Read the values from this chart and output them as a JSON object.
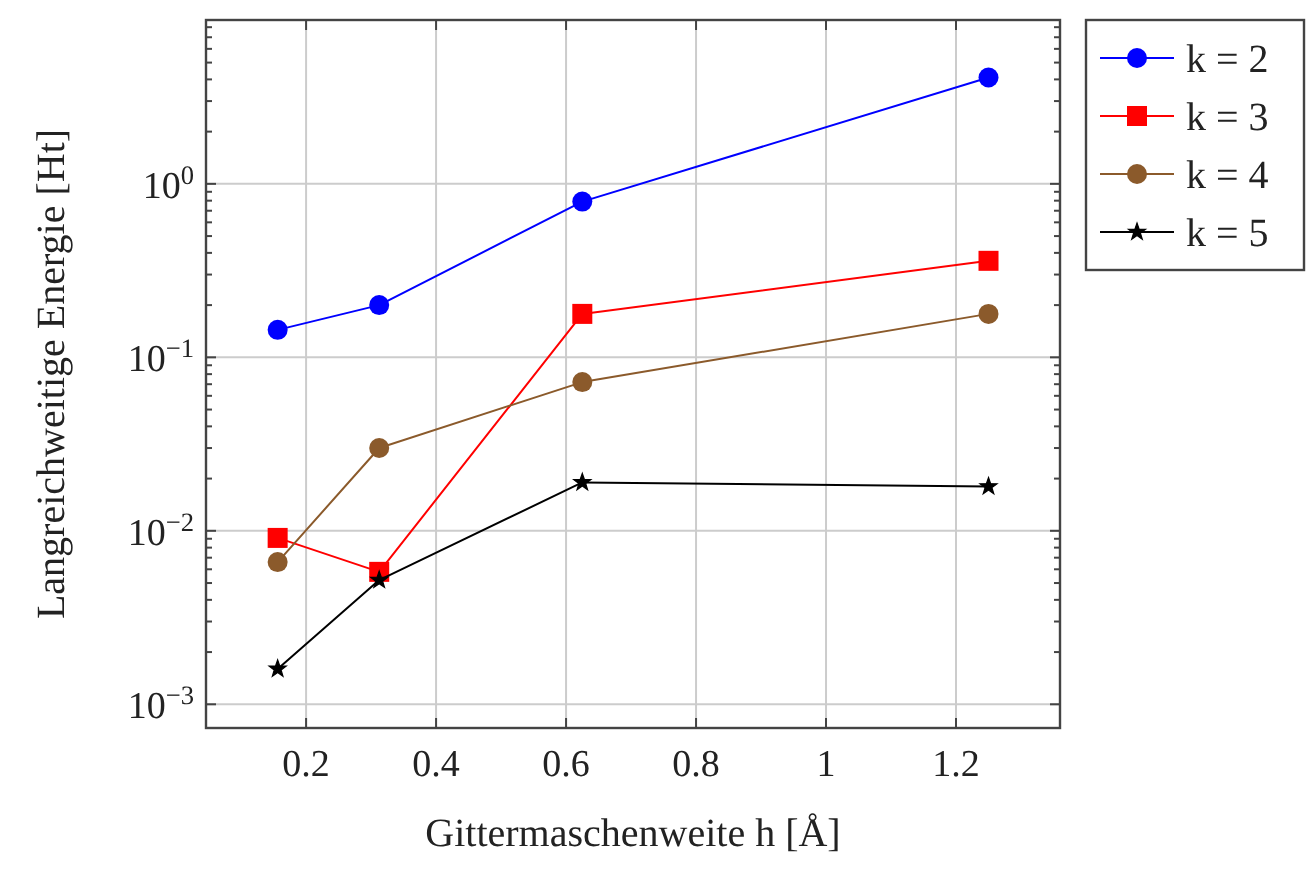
{
  "chart_data": {
    "type": "line",
    "xlabel": "Gittermaschenweite h [Å]",
    "ylabel": "Langreichweitige Energie [Ht]",
    "log": "y",
    "grid": true,
    "legend": "top right",
    "x": [
      0.15625,
      0.3125,
      0.625,
      1.25
    ],
    "xlim": [
      0.046,
      1.36
    ],
    "xticks": [
      0.2,
      0.4,
      0.6,
      0.8,
      1,
      1.2
    ],
    "ylim": [
      0.00073,
      8.8
    ],
    "yticks": [
      {
        "value": 0.001,
        "label": "10$^{−3}$"
      },
      {
        "value": 0.002,
        "label": null
      },
      {
        "value": 0.003,
        "label": null
      },
      {
        "value": 0.004,
        "label": null
      },
      {
        "value": 0.005,
        "label": null
      },
      {
        "value": 0.006,
        "label": null
      },
      {
        "value": 0.007,
        "label": null
      },
      {
        "value": 0.008,
        "label": null
      },
      {
        "value": 0.009,
        "label": null
      },
      {
        "value": 0.01,
        "label": "10$^{−2}$"
      },
      {
        "value": 0.02,
        "label": null
      },
      {
        "value": 0.03,
        "label": null
      },
      {
        "value": 0.04,
        "label": null
      },
      {
        "value": 0.05,
        "label": null
      },
      {
        "value": 0.06,
        "label": null
      },
      {
        "value": 0.07,
        "label": null
      },
      {
        "value": 0.08,
        "label": null
      },
      {
        "value": 0.09,
        "label": null
      },
      {
        "value": 0.1,
        "label": "10$^{−1}$"
      },
      {
        "value": 0.2,
        "label": null
      },
      {
        "value": 0.3,
        "label": null
      },
      {
        "value": 0.4,
        "label": null
      },
      {
        "value": 0.5,
        "label": null
      },
      {
        "value": 0.6,
        "label": null
      },
      {
        "value": 0.7,
        "label": null
      },
      {
        "value": 0.8,
        "label": null
      },
      {
        "value": 0.9,
        "label": null
      },
      {
        "value": 1,
        "label": "10$^{0}$"
      },
      {
        "value": 2,
        "label": null
      },
      {
        "value": 3,
        "label": null
      },
      {
        "value": 4,
        "label": null
      },
      {
        "value": 5,
        "label": null
      },
      {
        "value": 6,
        "label": null
      },
      {
        "value": 7,
        "label": null
      },
      {
        "value": 8,
        "label": null
      }
    ],
    "series": [
      {
        "name": "k = 2",
        "color": "#0000ff",
        "marker": "circle",
        "values": [
          0.144,
          0.2,
          0.79,
          4.1
        ]
      },
      {
        "name": "k = 3",
        "color": "#ff0000",
        "marker": "square",
        "values": [
          0.0091,
          0.0058,
          0.178,
          0.36
        ]
      },
      {
        "name": "k = 4",
        "color": "#8b5a2b",
        "marker": "circle",
        "values": [
          0.0066,
          0.03,
          0.072,
          0.178
        ]
      },
      {
        "name": "k = 5",
        "color": "#000000",
        "marker": "star",
        "values": [
          0.0016,
          0.0052,
          0.019,
          0.018
        ]
      }
    ]
  }
}
